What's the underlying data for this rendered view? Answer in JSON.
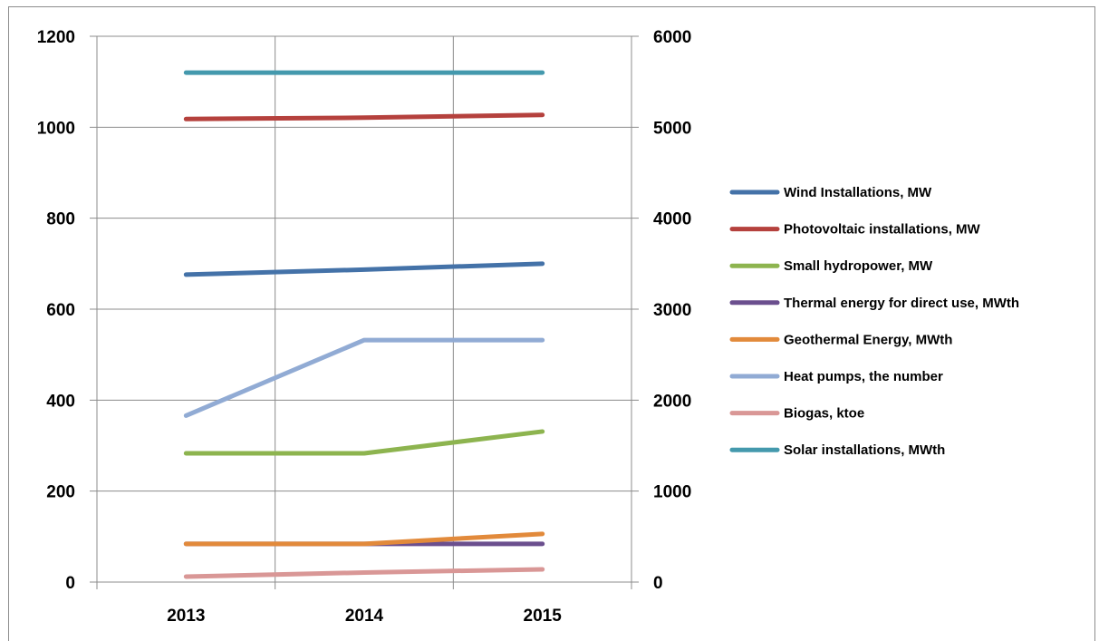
{
  "chart_data": {
    "type": "line",
    "categories": [
      "2013",
      "2014",
      "2015"
    ],
    "y_left": {
      "min": 0,
      "max": 1200,
      "ticks": [
        "0",
        "200",
        "400",
        "600",
        "800",
        "1000",
        "1200"
      ]
    },
    "y_right": {
      "min": 0,
      "max": 6000,
      "ticks": [
        "0",
        "1000",
        "2000",
        "3000",
        "4000",
        "5000",
        "6000"
      ]
    },
    "grid": true,
    "legend_position": "right",
    "series": [
      {
        "name": "Wind Installations, MW",
        "color": "#4472a8",
        "axis": "left",
        "values": [
          676,
          687,
          700
        ]
      },
      {
        "name": "Photovoltaic installations, MW",
        "color": "#b5413d",
        "axis": "left",
        "values": [
          1018,
          1021,
          1027
        ]
      },
      {
        "name": "Small hydropower, MW",
        "color": "#8db44f",
        "axis": "left",
        "values": [
          283,
          283,
          331
        ]
      },
      {
        "name": "Thermal energy for direct use, MWth",
        "color": "#6b4f8e",
        "axis": "left",
        "values": [
          84,
          84,
          84
        ]
      },
      {
        "name": "Geothermal Energy, MWth",
        "color": "#e28a3b",
        "axis": "left",
        "values": [
          84,
          84,
          106
        ]
      },
      {
        "name": "Heat pumps, the number",
        "color": "#91abd4",
        "axis": "left",
        "values": [
          366,
          532,
          532
        ]
      },
      {
        "name": "Biogas, ktoe",
        "color": "#d99796",
        "axis": "left",
        "values": [
          12,
          21,
          28
        ]
      },
      {
        "name": "Solar installations, MWth",
        "color": "#4499ad",
        "axis": "left",
        "values": [
          1120,
          1120,
          1120
        ]
      }
    ]
  }
}
